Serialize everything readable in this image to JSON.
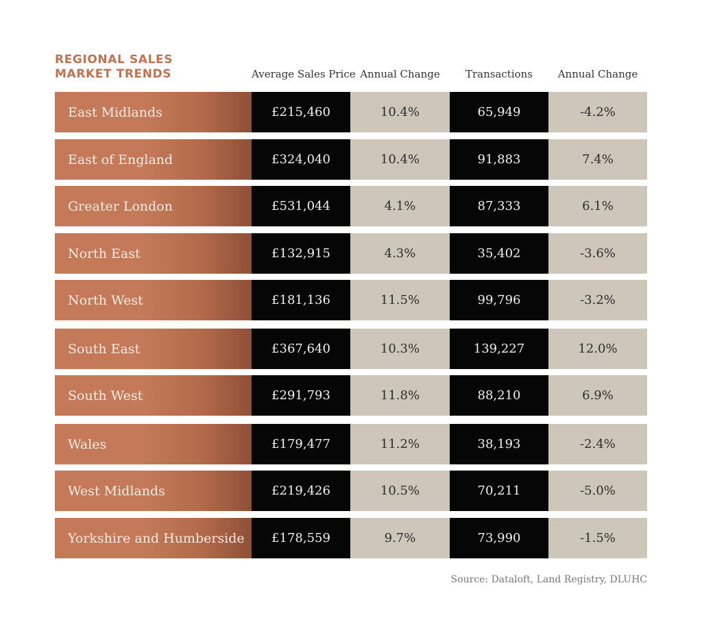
{
  "chart_data": {
    "type": "table",
    "title": [
      "REGIONAL SALES",
      "MARKET TRENDS"
    ],
    "columns": [
      "Average Sales Price",
      "Annual Change",
      "Transactions",
      "Annual Change"
    ],
    "rows": [
      {
        "region": "East Midlands",
        "price": "£215,460",
        "price_change": "10.4%",
        "transactions": "65,949",
        "transactions_change": "-4.2%"
      },
      {
        "region": "East of England",
        "price": "£324,040",
        "price_change": "10.4%",
        "transactions": "91,883",
        "transactions_change": "7.4%"
      },
      {
        "region": "Greater London",
        "price": "£531,044",
        "price_change": "4.1%",
        "transactions": "87,333",
        "transactions_change": "6.1%"
      },
      {
        "region": "North East",
        "price": "£132,915",
        "price_change": "4.3%",
        "transactions": "35,402",
        "transactions_change": "-3.6%"
      },
      {
        "region": "North West",
        "price": "£181,136",
        "price_change": "11.5%",
        "transactions": "99,796",
        "transactions_change": "-3.2%"
      },
      {
        "region": "South East",
        "price": "£367,640",
        "price_change": "10.3%",
        "transactions": "139,227",
        "transactions_change": "12.0%"
      },
      {
        "region": "South West",
        "price": "£291,793",
        "price_change": "11.8%",
        "transactions": "88,210",
        "transactions_change": "6.9%"
      },
      {
        "region": "Wales",
        "price": "£179,477",
        "price_change": "11.2%",
        "transactions": "38,193",
        "transactions_change": "-2.4%"
      },
      {
        "region": "West Midlands",
        "price": "£219,426",
        "price_change": "10.5%",
        "transactions": "70,211",
        "transactions_change": "-5.0%"
      },
      {
        "region": "Yorkshire and Humberside",
        "price": "£178,559",
        "price_change": "9.7%",
        "transactions": "73,990",
        "transactions_change": "-1.5%"
      }
    ],
    "source": "Source: Dataloft, Land Registry, DLUHC",
    "colors": {
      "title": "#c2724f",
      "region_cell": "#c47a58",
      "dark_cell": "#060606",
      "light_cell": "#cec6b8"
    }
  }
}
